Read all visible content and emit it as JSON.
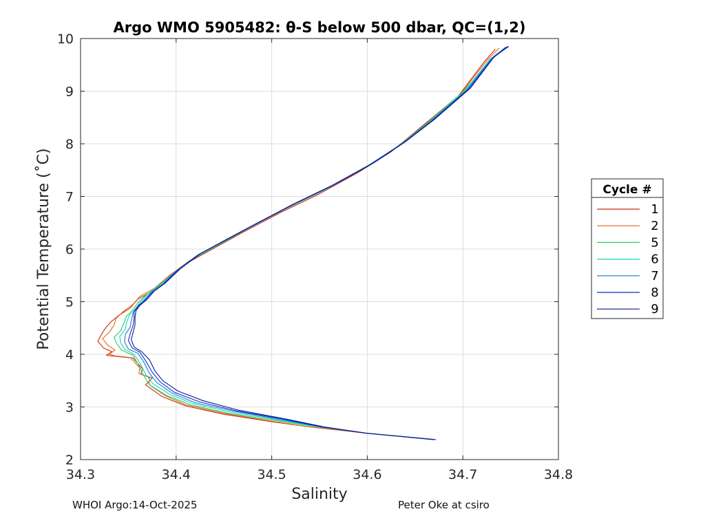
{
  "chart_data": {
    "type": "line",
    "title": "Argo WMO 5905482: θ-S below 500 dbar,  QC=(1,2)",
    "xlabel": "Salinity",
    "ylabel": "Potential Temperature (˚C)",
    "xlim": [
      34.3,
      34.8
    ],
    "ylim": [
      2,
      10
    ],
    "xticks": [
      "34.3",
      "34.4",
      "34.5",
      "34.6",
      "34.7",
      "34.8"
    ],
    "yticks": [
      "2",
      "3",
      "4",
      "5",
      "6",
      "7",
      "8",
      "9",
      "10"
    ],
    "grid": true,
    "legend": {
      "title": "Cycle #",
      "placement": "outside-right"
    },
    "series": [
      {
        "name": "1",
        "color": "#c82a0c",
        "points": [
          [
            34.669,
            2.38
          ],
          [
            34.6,
            2.5
          ],
          [
            34.54,
            2.62
          ],
          [
            34.5,
            2.72
          ],
          [
            34.45,
            2.86
          ],
          [
            34.41,
            3.02
          ],
          [
            34.385,
            3.2
          ],
          [
            34.368,
            3.42
          ],
          [
            34.375,
            3.55
          ],
          [
            34.363,
            3.62
          ],
          [
            34.365,
            3.72
          ],
          [
            34.355,
            3.93
          ],
          [
            34.338,
            3.96
          ],
          [
            34.327,
            3.98
          ],
          [
            34.333,
            4.05
          ],
          [
            34.324,
            4.12
          ],
          [
            34.318,
            4.25
          ],
          [
            34.322,
            4.38
          ],
          [
            34.326,
            4.5
          ],
          [
            34.332,
            4.62
          ],
          [
            34.34,
            4.74
          ],
          [
            34.352,
            4.88
          ],
          [
            34.36,
            5.05
          ],
          [
            34.375,
            5.2
          ],
          [
            34.39,
            5.45
          ],
          [
            34.41,
            5.72
          ],
          [
            34.44,
            6.02
          ],
          [
            34.47,
            6.32
          ],
          [
            34.51,
            6.7
          ],
          [
            34.55,
            7.05
          ],
          [
            34.59,
            7.45
          ],
          [
            34.625,
            7.85
          ],
          [
            34.655,
            8.3
          ],
          [
            34.695,
            8.9
          ],
          [
            34.722,
            9.55
          ],
          [
            34.734,
            9.8
          ]
        ]
      },
      {
        "name": "2",
        "color": "#e06418",
        "points": [
          [
            34.668,
            2.38
          ],
          [
            34.6,
            2.5
          ],
          [
            34.54,
            2.62
          ],
          [
            34.5,
            2.73
          ],
          [
            34.45,
            2.88
          ],
          [
            34.41,
            3.04
          ],
          [
            34.388,
            3.22
          ],
          [
            34.372,
            3.42
          ],
          [
            34.372,
            3.56
          ],
          [
            34.361,
            3.64
          ],
          [
            34.362,
            3.74
          ],
          [
            34.352,
            3.94
          ],
          [
            34.336,
            3.97
          ],
          [
            34.33,
            4.0
          ],
          [
            34.336,
            4.08
          ],
          [
            34.328,
            4.18
          ],
          [
            34.323,
            4.3
          ],
          [
            34.33,
            4.42
          ],
          [
            34.335,
            4.55
          ],
          [
            34.337,
            4.68
          ],
          [
            34.345,
            4.82
          ],
          [
            34.355,
            4.95
          ],
          [
            34.362,
            5.1
          ],
          [
            34.377,
            5.25
          ],
          [
            34.393,
            5.5
          ],
          [
            34.414,
            5.78
          ],
          [
            34.444,
            6.08
          ],
          [
            34.474,
            6.38
          ],
          [
            34.513,
            6.75
          ],
          [
            34.553,
            7.1
          ],
          [
            34.593,
            7.5
          ],
          [
            34.628,
            7.9
          ],
          [
            34.658,
            8.33
          ],
          [
            34.698,
            8.95
          ],
          [
            34.725,
            9.58
          ],
          [
            34.738,
            9.82
          ]
        ]
      },
      {
        "name": "5",
        "color": "#1fcf5c",
        "points": [
          [
            34.671,
            2.38
          ],
          [
            34.6,
            2.5
          ],
          [
            34.545,
            2.63
          ],
          [
            34.505,
            2.74
          ],
          [
            34.455,
            2.88
          ],
          [
            34.415,
            3.04
          ],
          [
            34.39,
            3.22
          ],
          [
            34.372,
            3.42
          ],
          [
            34.366,
            3.6
          ],
          [
            34.36,
            3.82
          ],
          [
            34.355,
            3.98
          ],
          [
            34.343,
            4.08
          ],
          [
            34.338,
            4.2
          ],
          [
            34.335,
            4.32
          ],
          [
            34.342,
            4.45
          ],
          [
            34.345,
            4.58
          ],
          [
            34.348,
            4.72
          ],
          [
            34.355,
            4.85
          ],
          [
            34.36,
            4.98
          ],
          [
            34.368,
            5.12
          ],
          [
            34.38,
            5.28
          ],
          [
            34.396,
            5.52
          ],
          [
            34.418,
            5.82
          ],
          [
            34.448,
            6.12
          ],
          [
            34.478,
            6.42
          ],
          [
            34.518,
            6.8
          ],
          [
            34.558,
            7.15
          ],
          [
            34.598,
            7.55
          ],
          [
            34.632,
            7.95
          ],
          [
            34.662,
            8.38
          ],
          [
            34.7,
            8.98
          ],
          [
            34.73,
            9.6
          ],
          [
            34.746,
            9.84
          ]
        ]
      },
      {
        "name": "6",
        "color": "#17d4b8",
        "points": [
          [
            34.67,
            2.38
          ],
          [
            34.6,
            2.5
          ],
          [
            34.548,
            2.63
          ],
          [
            34.508,
            2.75
          ],
          [
            34.458,
            2.9
          ],
          [
            34.418,
            3.06
          ],
          [
            34.393,
            3.24
          ],
          [
            34.376,
            3.44
          ],
          [
            34.368,
            3.62
          ],
          [
            34.362,
            3.84
          ],
          [
            34.356,
            4.0
          ],
          [
            34.346,
            4.1
          ],
          [
            34.342,
            4.22
          ],
          [
            34.341,
            4.34
          ],
          [
            34.347,
            4.48
          ],
          [
            34.348,
            4.6
          ],
          [
            34.351,
            4.74
          ],
          [
            34.358,
            4.87
          ],
          [
            34.363,
            5.0
          ],
          [
            34.37,
            5.14
          ],
          [
            34.382,
            5.3
          ],
          [
            34.398,
            5.55
          ],
          [
            34.42,
            5.85
          ],
          [
            34.45,
            6.15
          ],
          [
            34.48,
            6.45
          ],
          [
            34.52,
            6.82
          ],
          [
            34.56,
            7.17
          ],
          [
            34.6,
            7.57
          ],
          [
            34.634,
            7.97
          ],
          [
            34.664,
            8.4
          ],
          [
            34.702,
            9.0
          ],
          [
            34.728,
            9.6
          ],
          [
            34.744,
            9.82
          ]
        ]
      },
      {
        "name": "7",
        "color": "#1a78d8",
        "points": [
          [
            34.672,
            2.38
          ],
          [
            34.6,
            2.5
          ],
          [
            34.55,
            2.63
          ],
          [
            34.51,
            2.76
          ],
          [
            34.46,
            2.92
          ],
          [
            34.42,
            3.08
          ],
          [
            34.396,
            3.26
          ],
          [
            34.38,
            3.46
          ],
          [
            34.372,
            3.64
          ],
          [
            34.366,
            3.86
          ],
          [
            34.36,
            4.02
          ],
          [
            34.35,
            4.1
          ],
          [
            34.346,
            4.24
          ],
          [
            34.347,
            4.38
          ],
          [
            34.352,
            4.52
          ],
          [
            34.353,
            4.64
          ],
          [
            34.355,
            4.78
          ],
          [
            34.36,
            4.9
          ],
          [
            34.366,
            5.02
          ],
          [
            34.373,
            5.16
          ],
          [
            34.385,
            5.32
          ],
          [
            34.4,
            5.58
          ],
          [
            34.422,
            5.88
          ],
          [
            34.452,
            6.18
          ],
          [
            34.483,
            6.48
          ],
          [
            34.522,
            6.85
          ],
          [
            34.562,
            7.2
          ],
          [
            34.602,
            7.6
          ],
          [
            34.636,
            8.0
          ],
          [
            34.666,
            8.42
          ],
          [
            34.704,
            9.02
          ],
          [
            34.73,
            9.62
          ],
          [
            34.745,
            9.84
          ]
        ]
      },
      {
        "name": "8",
        "color": "#0a2fd0",
        "points": [
          [
            34.671,
            2.38
          ],
          [
            34.6,
            2.5
          ],
          [
            34.552,
            2.62
          ],
          [
            34.512,
            2.77
          ],
          [
            34.462,
            2.93
          ],
          [
            34.424,
            3.1
          ],
          [
            34.398,
            3.28
          ],
          [
            34.383,
            3.48
          ],
          [
            34.375,
            3.66
          ],
          [
            34.368,
            3.88
          ],
          [
            34.362,
            4.04
          ],
          [
            34.354,
            4.12
          ],
          [
            34.35,
            4.26
          ],
          [
            34.352,
            4.4
          ],
          [
            34.355,
            4.55
          ],
          [
            34.356,
            4.68
          ],
          [
            34.356,
            4.82
          ],
          [
            34.36,
            4.92
          ],
          [
            34.368,
            5.04
          ],
          [
            34.375,
            5.18
          ],
          [
            34.387,
            5.34
          ],
          [
            34.402,
            5.6
          ],
          [
            34.424,
            5.9
          ],
          [
            34.455,
            6.2
          ],
          [
            34.486,
            6.5
          ],
          [
            34.525,
            6.87
          ],
          [
            34.565,
            7.22
          ],
          [
            34.605,
            7.62
          ],
          [
            34.638,
            8.02
          ],
          [
            34.668,
            8.44
          ],
          [
            34.706,
            9.04
          ],
          [
            34.732,
            9.64
          ],
          [
            34.747,
            9.85
          ]
        ]
      },
      {
        "name": "9",
        "color": "#0a1a8a",
        "points": [
          [
            34.67,
            2.38
          ],
          [
            34.6,
            2.5
          ],
          [
            34.555,
            2.62
          ],
          [
            34.515,
            2.77
          ],
          [
            34.465,
            2.94
          ],
          [
            34.428,
            3.12
          ],
          [
            34.402,
            3.3
          ],
          [
            34.386,
            3.5
          ],
          [
            34.378,
            3.68
          ],
          [
            34.372,
            3.9
          ],
          [
            34.364,
            4.05
          ],
          [
            34.356,
            4.14
          ],
          [
            34.353,
            4.28
          ],
          [
            34.355,
            4.42
          ],
          [
            34.357,
            4.56
          ],
          [
            34.357,
            4.7
          ],
          [
            34.358,
            4.83
          ],
          [
            34.362,
            4.93
          ],
          [
            34.37,
            5.05
          ],
          [
            34.377,
            5.2
          ],
          [
            34.389,
            5.36
          ],
          [
            34.404,
            5.62
          ],
          [
            34.426,
            5.92
          ],
          [
            34.457,
            6.22
          ],
          [
            34.488,
            6.52
          ],
          [
            34.527,
            6.89
          ],
          [
            34.567,
            7.24
          ],
          [
            34.607,
            7.64
          ],
          [
            34.64,
            8.04
          ],
          [
            34.67,
            8.46
          ],
          [
            34.708,
            9.06
          ],
          [
            34.733,
            9.66
          ],
          [
            34.748,
            9.85
          ]
        ]
      }
    ]
  },
  "footer": {
    "left": "WHOI Argo:14-Oct-2025",
    "right": "Peter Oke at csiro"
  }
}
